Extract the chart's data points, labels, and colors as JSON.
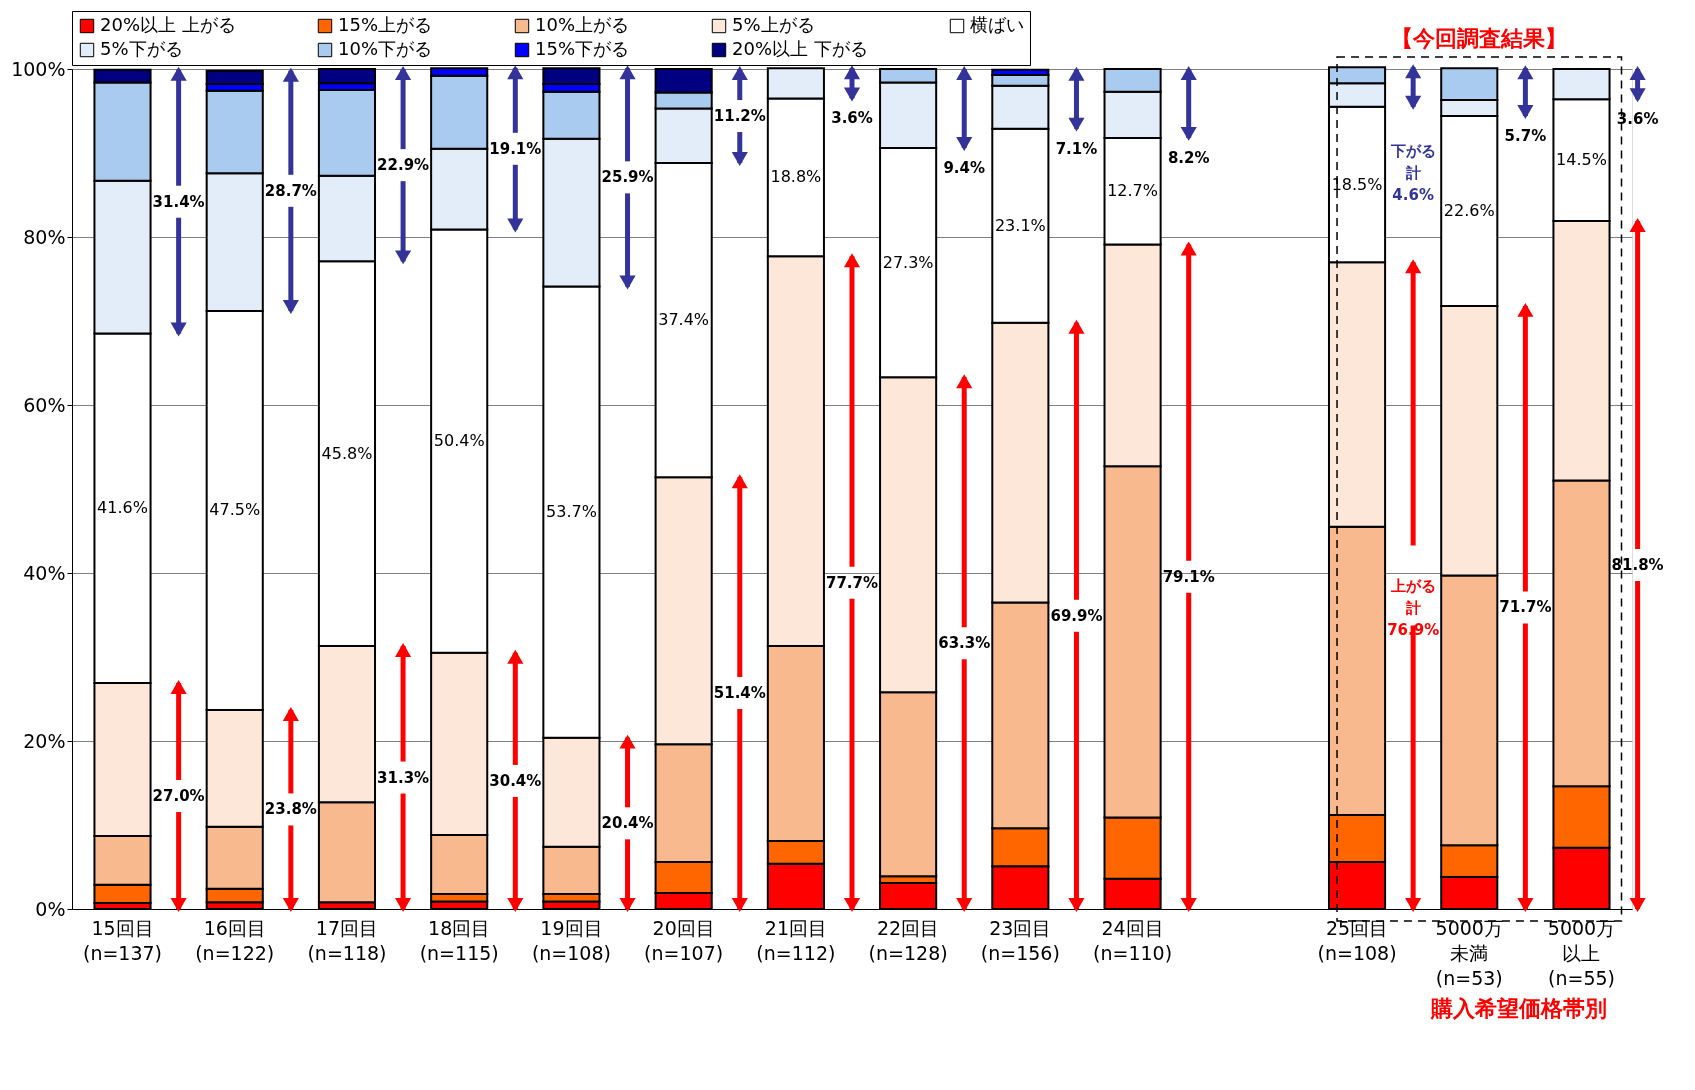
{
  "chart_data": {
    "type": "bar",
    "stacked": true,
    "categories": [
      "15回目\n(n=137)",
      "16回目\n(n=122)",
      "17回目\n(n=118)",
      "18回目\n(n=115)",
      "19回目\n(n=108)",
      "20回目\n(n=107)",
      "21回目\n(n=112)",
      "22回目\n(n=128)",
      "23回目\n(n=156)",
      "24回目\n(n=110)",
      null,
      "25回目\n(n=108)",
      "5000万未満\n(n=53)",
      "5000万以上\n(n=55)"
    ],
    "series": [
      {
        "name": "20%以上 上がる",
        "color": "#ff0000",
        "values": [
          0.7,
          0.8,
          0.8,
          0.9,
          0.9,
          1.9,
          5.4,
          3.1,
          5.1,
          3.6,
          null,
          5.6,
          3.8,
          7.3
        ]
      },
      {
        "name": "15%上がる",
        "color": "#ff6600",
        "values": [
          2.2,
          1.6,
          0,
          0.9,
          0.9,
          3.7,
          2.7,
          0.8,
          4.5,
          7.3,
          null,
          5.6,
          3.8,
          7.3
        ]
      },
      {
        "name": "10%上がる",
        "color": "#f9b98f",
        "values": [
          5.8,
          7.4,
          11.9,
          7.0,
          5.6,
          14.0,
          23.2,
          21.9,
          26.9,
          41.8,
          null,
          34.3,
          32.1,
          36.4
        ]
      },
      {
        "name": "5%上がる",
        "color": "#fde7d9",
        "values": [
          18.2,
          13.9,
          18.6,
          21.7,
          13.0,
          31.8,
          46.4,
          37.5,
          33.3,
          26.4,
          null,
          31.5,
          32.1,
          30.9
        ]
      },
      {
        "name": "横ばい",
        "color": "#ffffff",
        "values": [
          41.6,
          47.5,
          45.8,
          50.4,
          53.7,
          37.4,
          18.8,
          27.3,
          23.1,
          12.7,
          null,
          18.5,
          22.6,
          14.5
        ],
        "value_labels": [
          "41.6%",
          "47.5%",
          "45.8%",
          "50.4%",
          "53.7%",
          "37.4%",
          "18.8%",
          "27.3%",
          "23.1%",
          "12.7%",
          null,
          "18.5%",
          "22.6%",
          "14.5%"
        ]
      },
      {
        "name": "5%下がる",
        "color": "#e3edfa",
        "values": [
          18.2,
          16.4,
          10.2,
          9.6,
          17.6,
          6.5,
          3.6,
          7.8,
          5.1,
          5.5,
          null,
          2.8,
          1.9,
          3.6
        ]
      },
      {
        "name": "10%下がる",
        "color": "#a9cbef",
        "values": [
          11.7,
          9.8,
          10.2,
          8.7,
          5.6,
          1.9,
          0,
          1.6,
          1.3,
          2.7,
          null,
          1.9,
          3.8,
          0
        ]
      },
      {
        "name": "15%下がる",
        "color": "#0000ff",
        "values": [
          0,
          0.8,
          0.8,
          0.9,
          0.9,
          0,
          0,
          0,
          0.6,
          0,
          null,
          0,
          0,
          0
        ]
      },
      {
        "name": "20%以上 下がる",
        "color": "#000080",
        "values": [
          1.5,
          1.6,
          1.7,
          0,
          1.9,
          2.8,
          0,
          0,
          0,
          0,
          null,
          0,
          0,
          0
        ]
      }
    ],
    "ylim": [
      0,
      100
    ],
    "yticks": [
      {
        "value": 0,
        "label": "0%"
      },
      {
        "value": 20,
        "label": "20%"
      },
      {
        "value": 40,
        "label": "40%"
      },
      {
        "value": 60,
        "label": "60%"
      },
      {
        "value": 80,
        "label": "80%"
      },
      {
        "value": 100,
        "label": "100%"
      }
    ],
    "grid": "y",
    "legend": "top left",
    "annotations": [
      "【今回調査結果】",
      "購入希望価格帯別",
      "27.0%",
      "31.4%",
      "23.8%",
      "28.7%",
      "31.3%",
      "22.9%",
      "30.4%",
      "19.1%",
      "20.4%",
      "25.9%",
      "51.4%",
      "11.2%",
      "77.7%",
      "3.6%",
      "63.3%",
      "9.4%",
      "69.9%",
      "7.1%",
      "79.1%",
      "8.2%",
      "上がる計\n76.9%",
      "下がる計\n4.6%",
      "71.7%",
      "5.7%",
      "81.8%",
      "3.6%"
    ]
  }
}
